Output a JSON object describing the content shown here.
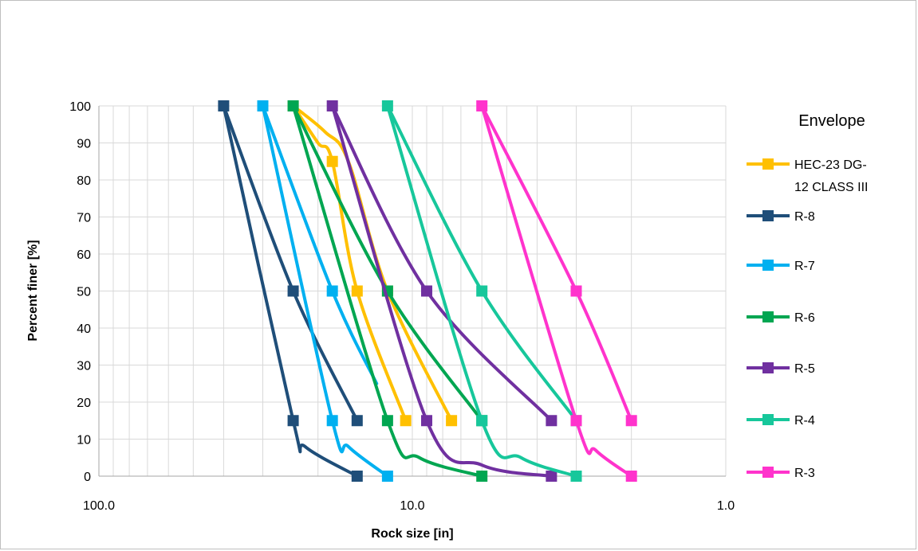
{
  "chart_data": {
    "type": "line",
    "xscale": "log",
    "x_reversed": true,
    "xlim": [
      100,
      1
    ],
    "ylim": [
      0,
      100
    ],
    "xlabel": "Rock size [in]",
    "ylabel": "Percent finer [%]",
    "x_ticks": [
      100,
      10,
      1
    ],
    "x_tick_labels": [
      "100.0",
      "10.0",
      "1.0"
    ],
    "y_ticks": [
      0,
      10,
      20,
      30,
      40,
      50,
      60,
      70,
      80,
      90,
      100
    ],
    "y_tick_labels": [
      "0",
      "10",
      "20",
      "30",
      "40",
      "50",
      "60",
      "70",
      "80",
      "90",
      "100"
    ],
    "grid": true,
    "legend_title": "Envelope",
    "legend_position": "right",
    "series": [
      {
        "name": "HEC-23 DG-12 CLASS III",
        "name_lines": [
          "HEC-23 DG-",
          "12 CLASS III"
        ],
        "color": "#FFC000",
        "curves": [
          [
            {
              "x": 24,
              "y": 100
            },
            {
              "x": 20,
              "y": 90
            },
            {
              "x": 18,
              "y": 85
            },
            {
              "x": 15,
              "y": 50
            },
            {
              "x": 10.5,
              "y": 15
            }
          ],
          [
            {
              "x": 24,
              "y": 100
            },
            {
              "x": 19,
              "y": 93
            },
            {
              "x": 16,
              "y": 85
            },
            {
              "x": 12,
              "y": 50
            },
            {
              "x": 7.5,
              "y": 15
            }
          ]
        ],
        "markers": [
          {
            "x": 24,
            "y": 100
          },
          {
            "x": 18,
            "y": 85
          },
          {
            "x": 15,
            "y": 50
          },
          {
            "x": 12,
            "y": 50
          },
          {
            "x": 10.5,
            "y": 15
          },
          {
            "x": 7.5,
            "y": 15
          }
        ]
      },
      {
        "name": "R-8",
        "color": "#1F4E79",
        "curves": [
          [
            {
              "x": 40,
              "y": 100
            },
            {
              "x": 24,
              "y": 15
            },
            {
              "x": 22,
              "y": 8
            },
            {
              "x": 15,
              "y": 0
            }
          ],
          [
            {
              "x": 40,
              "y": 100
            },
            {
              "x": 24,
              "y": 50
            },
            {
              "x": 15,
              "y": 15
            }
          ]
        ],
        "markers": [
          {
            "x": 40,
            "y": 100
          },
          {
            "x": 24,
            "y": 50
          },
          {
            "x": 24,
            "y": 15
          },
          {
            "x": 15,
            "y": 15
          },
          {
            "x": 15,
            "y": 0
          }
        ]
      },
      {
        "name": "R-7",
        "color": "#00B0F0",
        "curves": [
          [
            {
              "x": 30,
              "y": 100
            },
            {
              "x": 18,
              "y": 15
            },
            {
              "x": 16,
              "y": 8
            },
            {
              "x": 12,
              "y": 0
            }
          ],
          [
            {
              "x": 30,
              "y": 100
            },
            {
              "x": 18,
              "y": 50
            },
            {
              "x": 13,
              "y": 25
            }
          ]
        ],
        "markers": [
          {
            "x": 30,
            "y": 100
          },
          {
            "x": 18,
            "y": 50
          },
          {
            "x": 18,
            "y": 15
          },
          {
            "x": 12,
            "y": 0
          }
        ]
      },
      {
        "name": "R-6",
        "color": "#00A651",
        "curves": [
          [
            {
              "x": 24,
              "y": 100
            },
            {
              "x": 12,
              "y": 15
            },
            {
              "x": 9.5,
              "y": 5
            },
            {
              "x": 6,
              "y": 0
            }
          ],
          [
            {
              "x": 24,
              "y": 100
            },
            {
              "x": 12,
              "y": 50
            },
            {
              "x": 6,
              "y": 15
            }
          ]
        ],
        "markers": [
          {
            "x": 24,
            "y": 100
          },
          {
            "x": 12,
            "y": 50
          },
          {
            "x": 12,
            "y": 15
          },
          {
            "x": 6,
            "y": 15
          },
          {
            "x": 6,
            "y": 0
          }
        ]
      },
      {
        "name": "R-5",
        "color": "#7030A0",
        "curves": [
          [
            {
              "x": 18,
              "y": 100
            },
            {
              "x": 9,
              "y": 15
            },
            {
              "x": 6,
              "y": 3
            },
            {
              "x": 3.6,
              "y": 0
            }
          ],
          [
            {
              "x": 18,
              "y": 100
            },
            {
              "x": 9,
              "y": 50
            },
            {
              "x": 3.6,
              "y": 15
            }
          ]
        ],
        "markers": [
          {
            "x": 18,
            "y": 100
          },
          {
            "x": 9,
            "y": 50
          },
          {
            "x": 9,
            "y": 15
          },
          {
            "x": 3.6,
            "y": 15
          },
          {
            "x": 3.6,
            "y": 0
          }
        ]
      },
      {
        "name": "R-4",
        "color": "#17C79B",
        "curves": [
          [
            {
              "x": 12,
              "y": 100
            },
            {
              "x": 6,
              "y": 15
            },
            {
              "x": 4.5,
              "y": 5
            },
            {
              "x": 3,
              "y": 0
            }
          ],
          [
            {
              "x": 12,
              "y": 100
            },
            {
              "x": 6,
              "y": 50
            },
            {
              "x": 3,
              "y": 15
            }
          ]
        ],
        "markers": [
          {
            "x": 12,
            "y": 100
          },
          {
            "x": 6,
            "y": 50
          },
          {
            "x": 6,
            "y": 15
          },
          {
            "x": 3,
            "y": 15
          },
          {
            "x": 3,
            "y": 0
          }
        ]
      },
      {
        "name": "R-3",
        "color": "#FF33CC",
        "curves": [
          [
            {
              "x": 6,
              "y": 100
            },
            {
              "x": 3,
              "y": 15
            },
            {
              "x": 2.6,
              "y": 7
            },
            {
              "x": 2,
              "y": 0
            }
          ],
          [
            {
              "x": 6,
              "y": 100
            },
            {
              "x": 3,
              "y": 50
            },
            {
              "x": 2,
              "y": 15
            }
          ]
        ],
        "markers": [
          {
            "x": 6,
            "y": 100
          },
          {
            "x": 3,
            "y": 50
          },
          {
            "x": 3,
            "y": 15
          },
          {
            "x": 2,
            "y": 15
          },
          {
            "x": 2,
            "y": 0
          }
        ]
      }
    ]
  }
}
